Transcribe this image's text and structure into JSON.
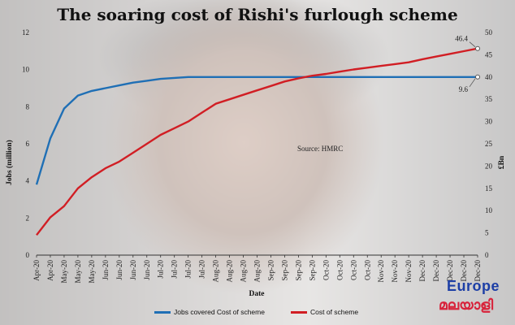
{
  "title": "The soaring cost of Rishi's furlough scheme",
  "source_note": "Source: HMRC",
  "brand": {
    "top": "Europe",
    "bottom": "മലയാളി"
  },
  "colors": {
    "jobs": "#1f6fb5",
    "cost": "#d11e24"
  },
  "chart_data": {
    "type": "line",
    "xlabel": "Date",
    "ylabel": "Jobs (million)",
    "ylabel_right": "£Bn",
    "ylim": [
      0,
      12
    ],
    "ylim_right": [
      0,
      50
    ],
    "y_ticks": [
      0,
      2,
      4,
      6,
      8,
      10,
      12
    ],
    "y_ticks_right": [
      0,
      5,
      10,
      15,
      20,
      25,
      30,
      35,
      40,
      45,
      50
    ],
    "grid": false,
    "legend_position": "bottom",
    "x": [
      "Apr-20",
      "Apr-20",
      "May-20",
      "May-20",
      "May-20",
      "Jun-20",
      "Jun-20",
      "Jun-20",
      "Jun-20",
      "Jul-20",
      "Jul-20",
      "Jul-20",
      "Jul-20",
      "Aug-20",
      "Aug-20",
      "Aug-20",
      "Aug-20",
      "Sep-20",
      "Sep-20",
      "Sep-20",
      "Sep-20",
      "Oct-20",
      "Oct-20",
      "Oct-20",
      "Oct-20",
      "Nov-20",
      "Nov-20",
      "Nov-20",
      "Dec-20",
      "Dec-20",
      "Dec-20",
      "Dec-20",
      "Dec-20"
    ],
    "series": [
      {
        "name": "Jobs covered Cost of scheme",
        "axis": "left",
        "values": [
          3.8,
          6.3,
          7.9,
          8.6,
          8.85,
          9.0,
          9.15,
          9.3,
          9.4,
          9.5,
          9.55,
          9.6,
          9.6,
          9.6,
          9.6,
          9.6,
          9.6,
          9.6,
          9.6,
          9.6,
          9.6,
          9.6,
          9.6,
          9.6,
          9.6,
          9.6,
          9.6,
          9.6,
          9.6,
          9.6,
          9.6,
          9.6,
          9.6
        ],
        "end_label": "9.6"
      },
      {
        "name": "Cost of scheme",
        "axis": "right",
        "values": [
          4.5,
          8.5,
          11.0,
          15.0,
          17.5,
          19.5,
          21.0,
          23.0,
          25.0,
          27.0,
          28.5,
          30.0,
          32.0,
          34.0,
          35.0,
          36.0,
          37.0,
          38.0,
          39.0,
          39.7,
          40.3,
          40.7,
          41.2,
          41.7,
          42.1,
          42.5,
          42.9,
          43.3,
          44.0,
          44.6,
          45.2,
          45.8,
          46.4
        ],
        "end_label": "46.4"
      }
    ]
  }
}
